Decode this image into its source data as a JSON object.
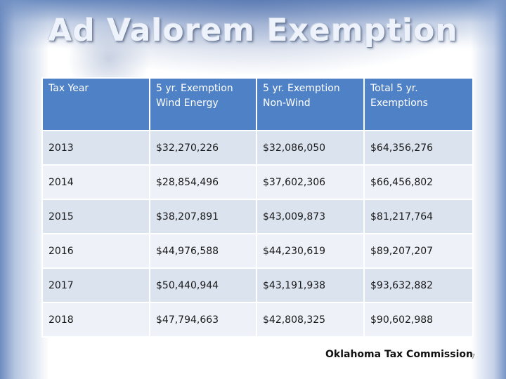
{
  "slide": {
    "title": "Ad Valorem Exemption",
    "credit": "Oklahoma Tax Commission",
    "slide_number": "7"
  },
  "table": {
    "headers": [
      "Tax Year",
      "5 yr. Exemption Wind Energy",
      "5 yr. Exemption Non-Wind",
      "Total 5 yr. Exemptions"
    ],
    "rows": [
      [
        "2013",
        "$32,270,226",
        "$32,086,050",
        "$64,356,276"
      ],
      [
        "2014",
        "$28,854,496",
        "$37,602,306",
        "$66,456,802"
      ],
      [
        "2015",
        "$38,207,891",
        "$43,009,873",
        "$81,217,764"
      ],
      [
        "2016",
        "$44,976,588",
        "$44,230,619",
        "$89,207,207"
      ],
      [
        "2017",
        "$50,440,944",
        "$43,191,938",
        "$93,632,882"
      ],
      [
        "2018",
        "$47,794,663",
        "$42,808,325",
        "$90,602,988"
      ]
    ]
  },
  "colors": {
    "header_fill": "#4f81c7",
    "row_fill_odd": "#dbe3ef",
    "row_fill_even": "#eef2f8"
  }
}
